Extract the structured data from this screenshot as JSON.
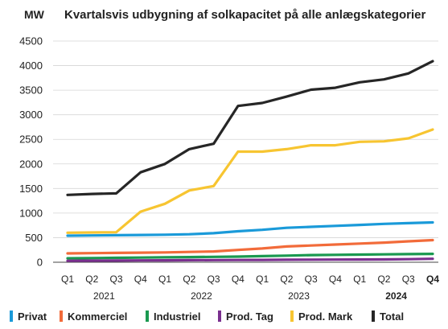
{
  "chart_data": {
    "type": "line",
    "title": "Kvartalsvis udbygning af solkapacitet på alle anlægskategorier",
    "ylabel": "MW",
    "xlabel": "",
    "ylim": [
      0,
      4500
    ],
    "yticks": [
      0,
      500,
      1000,
      1500,
      2000,
      2500,
      3000,
      3500,
      4000,
      4500
    ],
    "grid": true,
    "legend_position": "bottom",
    "categories": [
      "Q1",
      "Q2",
      "Q3",
      "Q4",
      "Q1",
      "Q2",
      "Q3",
      "Q4",
      "Q1",
      "Q2",
      "Q3",
      "Q4",
      "Q1",
      "Q2",
      "Q3",
      "Q4"
    ],
    "years": [
      {
        "label": "2021",
        "start": 0,
        "end": 3,
        "bold": false
      },
      {
        "label": "2022",
        "start": 4,
        "end": 7,
        "bold": false
      },
      {
        "label": "2023",
        "start": 8,
        "end": 11,
        "bold": false
      },
      {
        "label": "2024",
        "start": 12,
        "end": 15,
        "bold": true
      }
    ],
    "last_tick_bold": true,
    "series": [
      {
        "name": "Privat",
        "color": "#1a9ad9",
        "values": [
          540,
          545,
          550,
          555,
          560,
          570,
          590,
          630,
          660,
          700,
          720,
          740,
          760,
          780,
          795,
          810
        ]
      },
      {
        "name": "Kommerciel",
        "color": "#f26b3a",
        "values": [
          180,
          185,
          190,
          195,
          200,
          210,
          220,
          250,
          280,
          320,
          340,
          360,
          380,
          400,
          425,
          450
        ]
      },
      {
        "name": "Industriel",
        "color": "#1a9950",
        "values": [
          80,
          85,
          90,
          95,
          100,
          105,
          110,
          115,
          125,
          135,
          145,
          150,
          155,
          160,
          165,
          170
        ]
      },
      {
        "name": "Prod. Tag",
        "color": "#7a2f8f",
        "values": [
          30,
          32,
          35,
          37,
          40,
          42,
          44,
          46,
          48,
          50,
          52,
          54,
          56,
          58,
          62,
          70
        ]
      },
      {
        "name": "Prod. Mark",
        "color": "#f7c531",
        "values": [
          600,
          605,
          610,
          1030,
          1190,
          1460,
          1550,
          2250,
          2250,
          2300,
          2380,
          2380,
          2450,
          2460,
          2520,
          2700
        ]
      },
      {
        "name": "Total",
        "color": "#262626",
        "values": [
          1370,
          1390,
          1400,
          1830,
          2000,
          2300,
          2410,
          3180,
          3240,
          3370,
          3510,
          3550,
          3660,
          3720,
          3840,
          4090
        ]
      }
    ]
  }
}
